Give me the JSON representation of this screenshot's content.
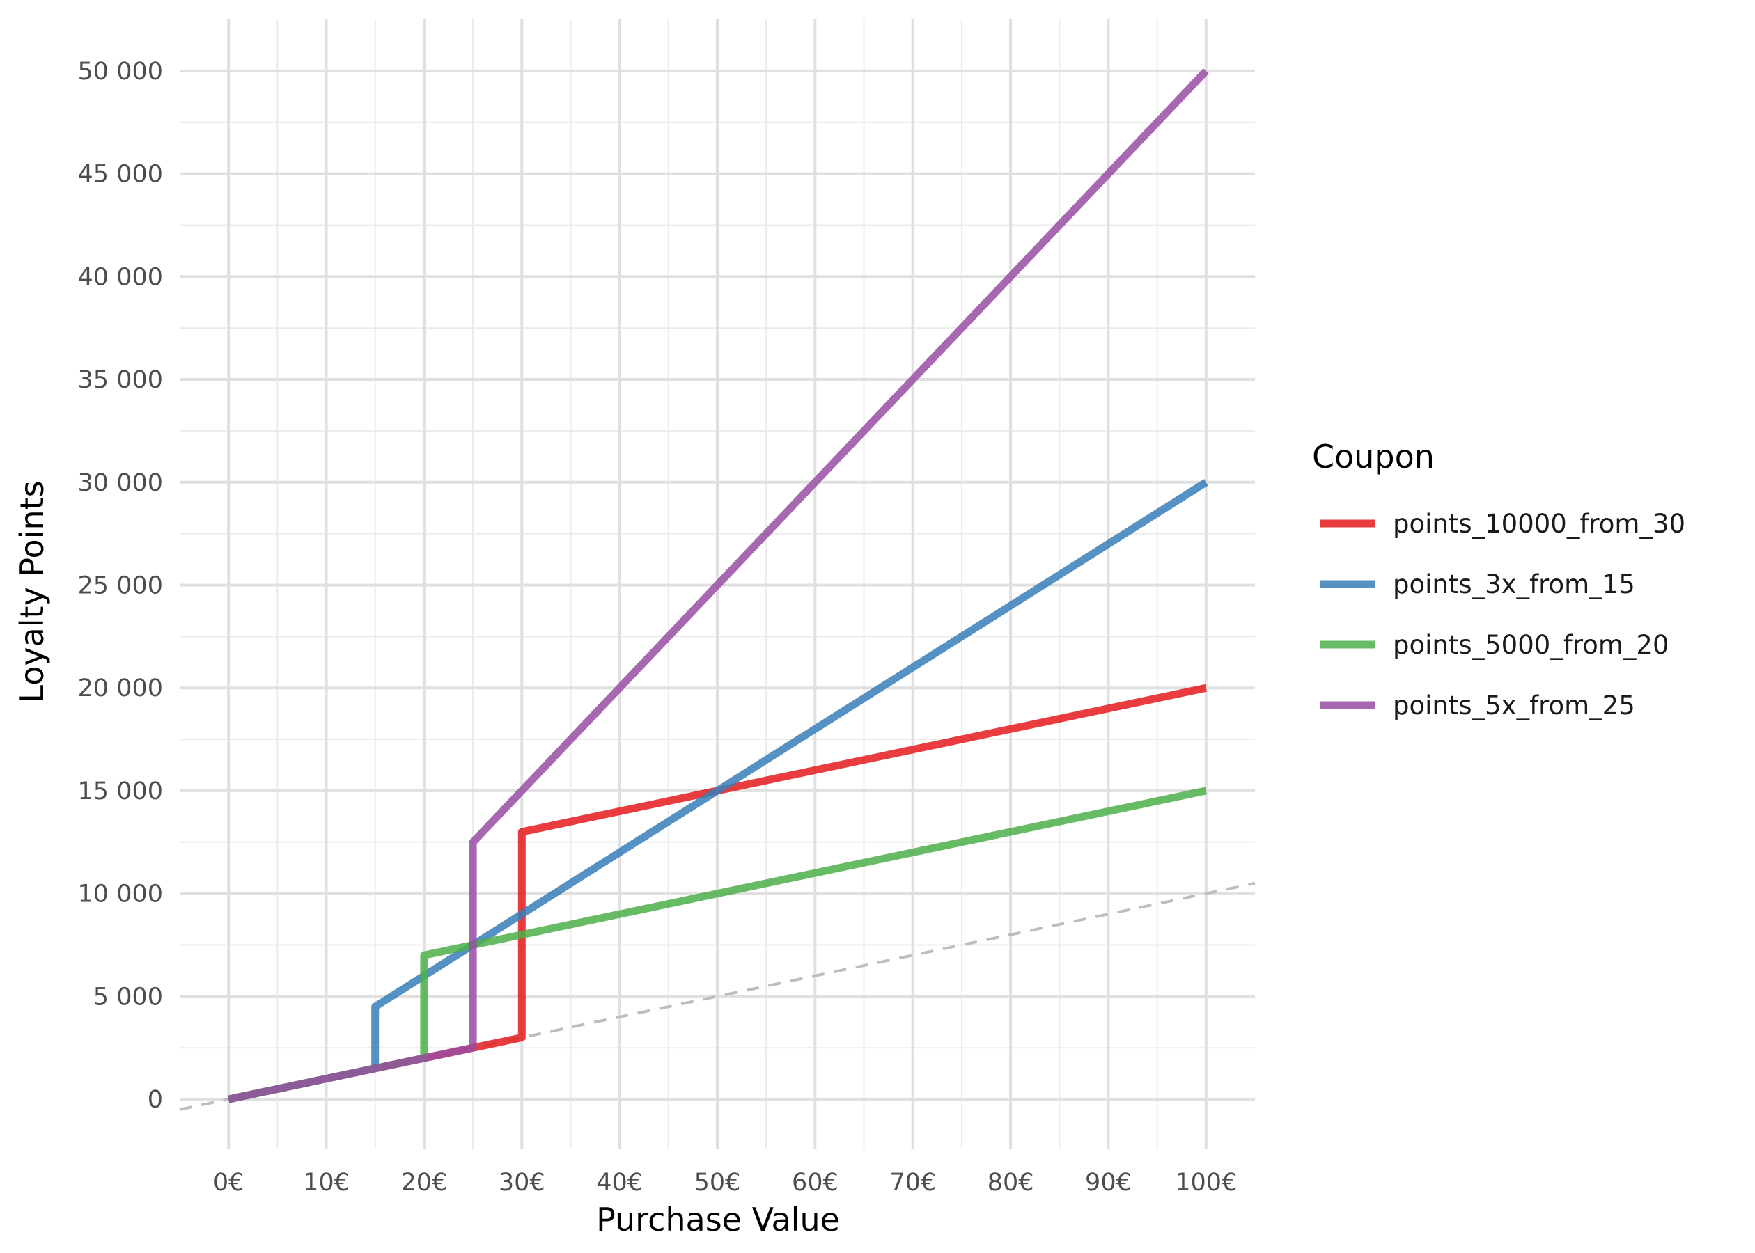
{
  "chart_data": {
    "type": "line",
    "title": "",
    "xlabel": "Purchase Value",
    "ylabel": "Loyalty Points",
    "xlim": [
      -5,
      105
    ],
    "ylim": [
      -2400,
      52500
    ],
    "x_ticks": [
      0,
      10,
      20,
      30,
      40,
      50,
      60,
      70,
      80,
      90,
      100
    ],
    "x_tick_labels": [
      "0€",
      "10€",
      "20€",
      "30€",
      "40€",
      "50€",
      "60€",
      "70€",
      "80€",
      "90€",
      "100€"
    ],
    "y_ticks": [
      0,
      5000,
      10000,
      15000,
      20000,
      25000,
      30000,
      35000,
      40000,
      45000,
      50000
    ],
    "y_tick_labels": [
      "0",
      "5 000",
      "10 000",
      "15 000",
      "20 000",
      "25 000",
      "30 000",
      "35 000",
      "40 000",
      "45 000",
      "50 000"
    ],
    "grid": true,
    "legend": {
      "title": "Coupon",
      "position": "right"
    },
    "baseline": {
      "name": "baseline",
      "style": "dashed",
      "color": "#bdbdbd",
      "x": [
        -5,
        105
      ],
      "y": [
        -500,
        10500
      ]
    },
    "series": [
      {
        "name": "points_10000_from_30",
        "color": "#e41a1c",
        "x": [
          0,
          30,
          30,
          100
        ],
        "y": [
          0,
          3000,
          13000,
          20000
        ]
      },
      {
        "name": "points_3x_from_15",
        "color": "#377eb8",
        "x": [
          0,
          15,
          15,
          100
        ],
        "y": [
          0,
          1500,
          4500,
          30000
        ]
      },
      {
        "name": "points_5000_from_20",
        "color": "#4daf4a",
        "x": [
          0,
          20,
          20,
          100
        ],
        "y": [
          0,
          2000,
          7000,
          15000
        ]
      },
      {
        "name": "points_5x_from_25",
        "color": "#984ea3",
        "x": [
          0,
          25,
          25,
          100
        ],
        "y": [
          0,
          2500,
          12500,
          50000
        ]
      }
    ]
  }
}
